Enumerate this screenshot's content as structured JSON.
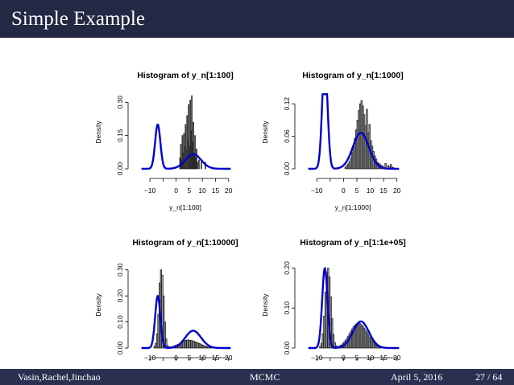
{
  "slide": {
    "title": "Simple Example",
    "footer": {
      "authors": "Vasin,Rachel,Jinchao",
      "short_title": "MCMC",
      "date": "April 5, 2016",
      "page": "27 / 64"
    }
  },
  "colors": {
    "title_bar": "#232844",
    "footer_bar": "#2b3050",
    "density_curve": "#0000cc",
    "bars": "#000000"
  },
  "chart_data": [
    {
      "type": "bar",
      "title": "Histogram of y_n[1:100]",
      "xlabel": "y_n[1:100]",
      "ylabel": "Density",
      "xlim": [
        -14,
        21
      ],
      "ylim": [
        0,
        0.33
      ],
      "xticks": [
        -10,
        0,
        5,
        10,
        15,
        20
      ],
      "xtick_labels": [
        "−10",
        "0",
        "5",
        "10",
        "15",
        "20"
      ],
      "yticks": [
        0,
        0.15,
        0.3
      ],
      "ytick_labels": [
        "0.00",
        "0.15",
        "0.30"
      ],
      "bin_width": 0.3,
      "bars": [
        [
          1.5,
          0.05
        ],
        [
          1.8,
          0.11
        ],
        [
          2.1,
          0.04
        ],
        [
          2.4,
          0.15
        ],
        [
          2.7,
          0.07
        ],
        [
          3.0,
          0.16
        ],
        [
          3.3,
          0.1
        ],
        [
          3.6,
          0.2
        ],
        [
          3.9,
          0.08
        ],
        [
          4.2,
          0.24
        ],
        [
          4.5,
          0.13
        ],
        [
          4.8,
          0.29
        ],
        [
          5.1,
          0.1
        ],
        [
          5.4,
          0.31
        ],
        [
          5.7,
          0.17
        ],
        [
          6.0,
          0.33
        ],
        [
          6.3,
          0.12
        ],
        [
          6.6,
          0.21
        ],
        [
          6.9,
          0.06
        ],
        [
          7.2,
          0.15
        ],
        [
          7.5,
          0.05
        ],
        [
          7.8,
          0.09
        ],
        [
          8.1,
          0.03
        ],
        [
          8.7,
          0.04
        ],
        [
          9.6,
          0.03
        ],
        [
          11.1,
          0.03
        ]
      ],
      "density": {
        "name": "density",
        "color": "#0000cc"
      }
    },
    {
      "type": "bar",
      "title": "Histogram of y_n[1:1000]",
      "xlabel": "y_n[1:1000]",
      "ylabel": "Density",
      "xlim": [
        -14,
        21
      ],
      "ylim": [
        0,
        0.135
      ],
      "xticks": [
        -10,
        0,
        5,
        10,
        15,
        20
      ],
      "xtick_labels": [
        "−10",
        "0",
        "5",
        "10",
        "15",
        "20"
      ],
      "yticks": [
        0,
        0.06,
        0.12
      ],
      "ytick_labels": [
        "0.00",
        "0.06",
        "0.12"
      ],
      "bin_width": 0.5,
      "bars": [
        [
          0.75,
          0.003
        ],
        [
          1.25,
          0.006
        ],
        [
          1.75,
          0.009
        ],
        [
          2.25,
          0.014
        ],
        [
          2.75,
          0.02
        ],
        [
          3.25,
          0.03
        ],
        [
          3.75,
          0.04
        ],
        [
          4.25,
          0.056
        ],
        [
          4.75,
          0.072
        ],
        [
          5.25,
          0.09
        ],
        [
          5.75,
          0.108
        ],
        [
          6.25,
          0.12
        ],
        [
          6.75,
          0.126
        ],
        [
          7.25,
          0.116
        ],
        [
          7.75,
          0.1
        ],
        [
          8.25,
          0.08
        ],
        [
          8.75,
          0.11
        ],
        [
          9.25,
          0.066
        ],
        [
          9.75,
          0.082
        ],
        [
          10.25,
          0.052
        ],
        [
          10.75,
          0.042
        ],
        [
          11.25,
          0.032
        ],
        [
          11.75,
          0.024
        ],
        [
          12.25,
          0.018
        ],
        [
          12.75,
          0.012
        ],
        [
          13.25,
          0.01
        ],
        [
          13.75,
          0.008
        ],
        [
          14.25,
          0.006
        ],
        [
          14.75,
          0.005
        ],
        [
          15.75,
          0.01
        ],
        [
          16.75,
          0.006
        ],
        [
          17.25,
          0.004
        ],
        [
          17.75,
          0.008
        ],
        [
          18.25,
          0.003
        ],
        [
          18.75,
          0.002
        ]
      ],
      "density": {
        "name": "density",
        "color": "#0000cc"
      }
    },
    {
      "type": "bar",
      "title": "Histogram of y_n[1:10000]",
      "xlabel": "",
      "ylabel": "Density",
      "xlim": [
        -14,
        21
      ],
      "ylim": [
        0,
        0.33
      ],
      "xticks": [
        -10,
        0,
        5,
        10,
        15,
        20
      ],
      "xtick_labels": [
        "−10",
        "0",
        "5",
        "10",
        "15",
        "20"
      ],
      "yticks": [
        0,
        0.1,
        0.2,
        0.3
      ],
      "ytick_labels": [
        "0.00",
        "0.10",
        "0.20",
        "0.30"
      ],
      "bin_width": 0.5,
      "bars": [
        [
          -8.25,
          0.006
        ],
        [
          -7.75,
          0.018
        ],
        [
          -7.25,
          0.055
        ],
        [
          -6.75,
          0.13
        ],
        [
          -6.25,
          0.25
        ],
        [
          -5.75,
          0.3
        ],
        [
          -5.25,
          0.28
        ],
        [
          -4.75,
          0.2
        ],
        [
          -4.25,
          0.1
        ],
        [
          -3.75,
          0.035
        ],
        [
          -3.25,
          0.01
        ],
        [
          -2.75,
          0.005
        ],
        [
          -2.25,
          0.004
        ],
        [
          -1.75,
          0.005
        ],
        [
          -1.25,
          0.006
        ],
        [
          -0.75,
          0.008
        ],
        [
          -0.25,
          0.01
        ],
        [
          0.25,
          0.012
        ],
        [
          0.75,
          0.014
        ],
        [
          1.25,
          0.016
        ],
        [
          1.75,
          0.019
        ],
        [
          2.25,
          0.022
        ],
        [
          2.75,
          0.025
        ],
        [
          3.25,
          0.028
        ],
        [
          3.75,
          0.03
        ],
        [
          4.25,
          0.031
        ],
        [
          4.75,
          0.031
        ],
        [
          5.25,
          0.03
        ],
        [
          5.75,
          0.029
        ],
        [
          6.25,
          0.028
        ],
        [
          6.75,
          0.026
        ],
        [
          7.25,
          0.024
        ],
        [
          7.75,
          0.022
        ],
        [
          8.25,
          0.02
        ],
        [
          8.75,
          0.018
        ],
        [
          9.25,
          0.016
        ],
        [
          9.75,
          0.013
        ],
        [
          10.25,
          0.011
        ],
        [
          10.75,
          0.009
        ],
        [
          11.25,
          0.007
        ],
        [
          11.75,
          0.005
        ],
        [
          12.25,
          0.004
        ],
        [
          12.75,
          0.003
        ],
        [
          13.25,
          0.002
        ],
        [
          13.75,
          0.001
        ]
      ],
      "density": {
        "name": "density",
        "color": "#0000cc"
      }
    },
    {
      "type": "bar",
      "title": "Histogram of y_n[1:1e+05]",
      "xlabel": "",
      "ylabel": "Density",
      "xlim": [
        -14,
        21
      ],
      "ylim": [
        0,
        0.215
      ],
      "xticks": [
        -10,
        0,
        5,
        10,
        15,
        20
      ],
      "xtick_labels": [
        "−10",
        "0",
        "5",
        "10",
        "15",
        "20"
      ],
      "yticks": [
        0,
        0.1,
        0.2
      ],
      "ytick_labels": [
        "0.00",
        "0.10",
        "0.20"
      ],
      "bin_width": 0.5,
      "bars": [
        [
          -8.75,
          0.004
        ],
        [
          -8.25,
          0.012
        ],
        [
          -7.75,
          0.036
        ],
        [
          -7.25,
          0.08
        ],
        [
          -6.75,
          0.14
        ],
        [
          -6.25,
          0.188
        ],
        [
          -5.75,
          0.2
        ],
        [
          -5.25,
          0.178
        ],
        [
          -4.75,
          0.128
        ],
        [
          -4.25,
          0.074
        ],
        [
          -3.75,
          0.034
        ],
        [
          -3.25,
          0.014
        ],
        [
          -2.75,
          0.006
        ],
        [
          -2.25,
          0.004
        ],
        [
          -1.75,
          0.004
        ],
        [
          -1.25,
          0.006
        ],
        [
          -0.75,
          0.008
        ],
        [
          -0.25,
          0.011
        ],
        [
          0.25,
          0.015
        ],
        [
          0.75,
          0.019
        ],
        [
          1.25,
          0.024
        ],
        [
          1.75,
          0.03
        ],
        [
          2.25,
          0.036
        ],
        [
          2.75,
          0.042
        ],
        [
          3.25,
          0.048
        ],
        [
          3.75,
          0.053
        ],
        [
          4.25,
          0.057
        ],
        [
          4.75,
          0.06
        ],
        [
          5.25,
          0.062
        ],
        [
          5.75,
          0.062
        ],
        [
          6.25,
          0.061
        ],
        [
          6.75,
          0.058
        ],
        [
          7.25,
          0.055
        ],
        [
          7.75,
          0.05
        ],
        [
          8.25,
          0.045
        ],
        [
          8.75,
          0.04
        ],
        [
          9.25,
          0.034
        ],
        [
          9.75,
          0.028
        ],
        [
          10.25,
          0.023
        ],
        [
          10.75,
          0.018
        ],
        [
          11.25,
          0.014
        ],
        [
          11.75,
          0.01
        ],
        [
          12.25,
          0.007
        ],
        [
          12.75,
          0.005
        ],
        [
          13.25,
          0.003
        ],
        [
          13.75,
          0.002
        ],
        [
          14.25,
          0.001
        ]
      ],
      "density": {
        "name": "density",
        "color": "#0000cc"
      }
    }
  ]
}
